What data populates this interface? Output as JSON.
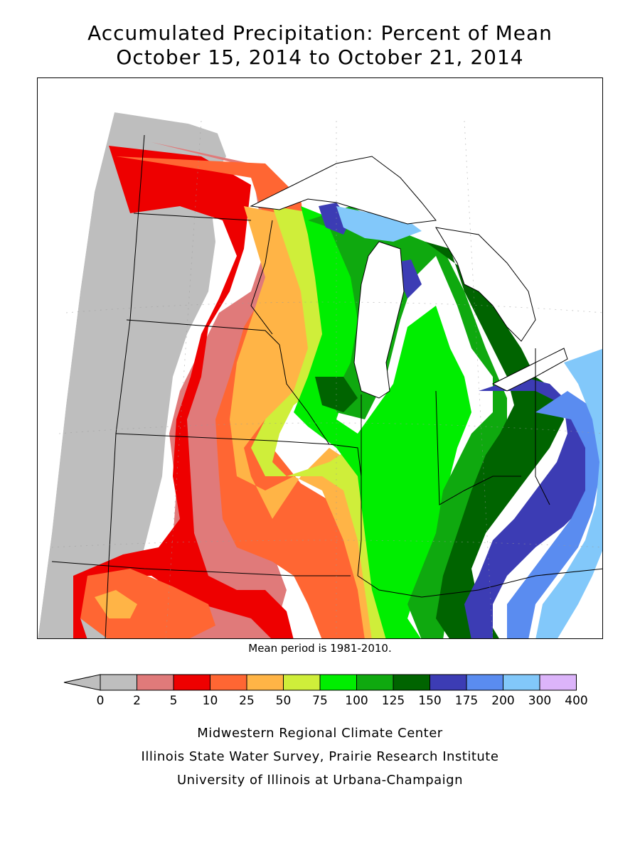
{
  "title_line1": "Accumulated Precipitation: Percent of Mean",
  "title_line2": "October 15, 2014 to October 21, 2014",
  "mean_period_note": "Mean period is 1981-2010.",
  "legend": {
    "ticks": [
      "0",
      "2",
      "5",
      "10",
      "25",
      "50",
      "75",
      "100",
      "125",
      "150",
      "175",
      "200",
      "300",
      "400"
    ],
    "bins": [
      {
        "range": "0-2",
        "color": "#bebebe"
      },
      {
        "range": "2-5",
        "color": "#e07a7a"
      },
      {
        "range": "5-10",
        "color": "#ee0000"
      },
      {
        "range": "10-25",
        "color": "#ff6633"
      },
      {
        "range": "25-50",
        "color": "#ffb446"
      },
      {
        "range": "50-75",
        "color": "#cfee3a"
      },
      {
        "range": "75-100",
        "color": "#00ee00"
      },
      {
        "range": "100-125",
        "color": "#0fa90f"
      },
      {
        "range": "125-150",
        "color": "#006400"
      },
      {
        "range": "150-175",
        "color": "#3c3cb4"
      },
      {
        "range": "175-200",
        "color": "#5a8cf0"
      },
      {
        "range": "200-300",
        "color": "#82c8fa"
      },
      {
        "range": "300-400",
        "color": "#dcb4fa"
      }
    ],
    "below_arrow_color": "#bebebe"
  },
  "credits": [
    "Midwestern Regional Climate Center",
    "Illinois State Water Survey, Prairie Research Institute",
    "University of Illinois at Urbana-Champaign"
  ]
}
